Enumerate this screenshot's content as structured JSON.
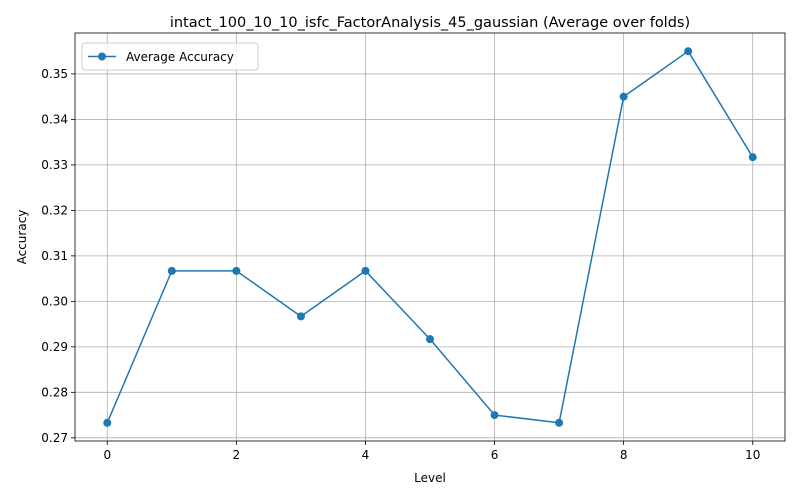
{
  "chart_data": {
    "type": "line",
    "title": "intact_100_10_10_isfc_FactorAnalysis_45_gaussian (Average over folds)",
    "xlabel": "Level",
    "ylabel": "Accuracy",
    "x": [
      0,
      1,
      2,
      3,
      4,
      5,
      6,
      7,
      8,
      9,
      10
    ],
    "series": [
      {
        "name": "Average Accuracy",
        "values": [
          0.2733,
          0.3067,
          0.3067,
          0.2967,
          0.3067,
          0.2917,
          0.275,
          0.2733,
          0.345,
          0.355,
          0.3317
        ],
        "color": "#1f77b4",
        "marker": "circle"
      }
    ],
    "xlim": [
      -0.5,
      10.5
    ],
    "ylim": [
      0.2693,
      0.359
    ],
    "xticks": [
      "0",
      "2",
      "4",
      "6",
      "8",
      "10"
    ],
    "yticks": [
      "0.27",
      "0.28",
      "0.29",
      "0.30",
      "0.31",
      "0.32",
      "0.33",
      "0.34",
      "0.35"
    ],
    "grid": true,
    "legend": "upper-left"
  }
}
